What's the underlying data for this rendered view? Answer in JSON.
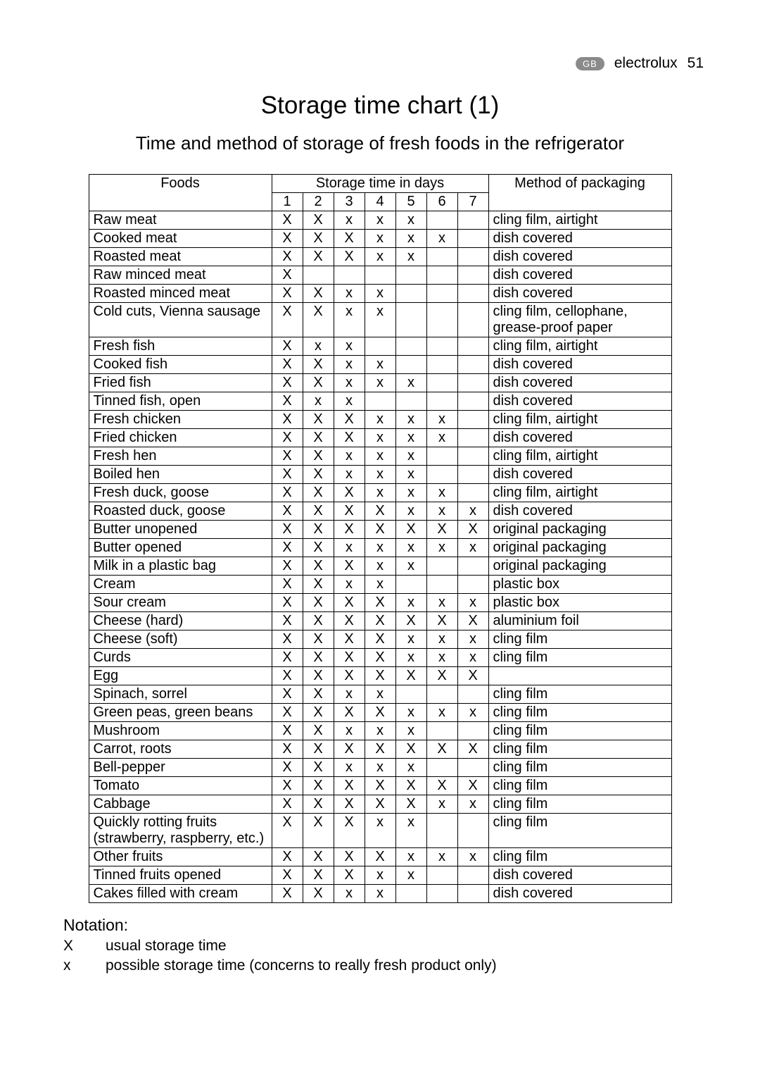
{
  "header": {
    "region_label": "GB",
    "brand": "electrolux",
    "page_number": "51"
  },
  "title": "Storage time chart (1)",
  "subtitle": "Time and method of storage of fresh foods in the refrigerator",
  "columns": {
    "foods_header": "Foods",
    "storage_header": "Storage time in days",
    "method_header": "Method of packaging",
    "day_labels": [
      "1",
      "2",
      "3",
      "4",
      "5",
      "6",
      "7"
    ]
  },
  "rows": [
    {
      "food": "Raw meat",
      "days": [
        "X",
        "X",
        "x",
        "x",
        "x",
        "",
        ""
      ],
      "method": "cling film, airtight"
    },
    {
      "food": "Cooked meat",
      "days": [
        "X",
        "X",
        "X",
        "x",
        "x",
        "x",
        ""
      ],
      "method": "dish covered"
    },
    {
      "food": "Roasted meat",
      "days": [
        "X",
        "X",
        "X",
        "x",
        "x",
        "",
        ""
      ],
      "method": "dish covered"
    },
    {
      "food": "Raw minced meat",
      "days": [
        "X",
        "",
        "",
        "",
        "",
        "",
        ""
      ],
      "method": "dish covered"
    },
    {
      "food": "Roasted minced meat",
      "days": [
        "X",
        "X",
        "x",
        "x",
        "",
        "",
        ""
      ],
      "method": "dish covered"
    },
    {
      "food": "Cold cuts, Vienna sausage",
      "days": [
        "X",
        "X",
        "x",
        "x",
        "",
        "",
        ""
      ],
      "method": "cling film, cellophane, grease-proof paper"
    },
    {
      "food": "Fresh fish",
      "days": [
        "X",
        "x",
        "x",
        "",
        "",
        "",
        ""
      ],
      "method": "cling film, airtight"
    },
    {
      "food": "Cooked fish",
      "days": [
        "X",
        "X",
        "x",
        "x",
        "",
        "",
        ""
      ],
      "method": "dish covered"
    },
    {
      "food": "Fried fish",
      "days": [
        "X",
        "X",
        "x",
        "x",
        "x",
        "",
        ""
      ],
      "method": "dish covered"
    },
    {
      "food": "Tinned fish, open",
      "days": [
        "X",
        "x",
        "x",
        "",
        "",
        "",
        ""
      ],
      "method": "dish covered"
    },
    {
      "food": "Fresh chicken",
      "days": [
        "X",
        "X",
        "X",
        "x",
        "x",
        "x",
        ""
      ],
      "method": "cling film, airtight"
    },
    {
      "food": "Fried chicken",
      "days": [
        "X",
        "X",
        "X",
        "x",
        "x",
        "x",
        ""
      ],
      "method": "dish covered"
    },
    {
      "food": "Fresh hen",
      "days": [
        "X",
        "X",
        "x",
        "x",
        "x",
        "",
        ""
      ],
      "method": "cling film, airtight"
    },
    {
      "food": "Boiled hen",
      "days": [
        "X",
        "X",
        "x",
        "x",
        "x",
        "",
        ""
      ],
      "method": "dish covered"
    },
    {
      "food": "Fresh duck, goose",
      "days": [
        "X",
        "X",
        "X",
        "x",
        "x",
        "x",
        ""
      ],
      "method": "cling film, airtight"
    },
    {
      "food": "Roasted duck, goose",
      "days": [
        "X",
        "X",
        "X",
        "X",
        "x",
        "x",
        "x"
      ],
      "method": "dish covered"
    },
    {
      "food": "Butter unopened",
      "days": [
        "X",
        "X",
        "X",
        "X",
        "X",
        "X",
        "X"
      ],
      "method": "original packaging"
    },
    {
      "food": "Butter opened",
      "days": [
        "X",
        "X",
        "x",
        "x",
        "x",
        "x",
        "x"
      ],
      "method": "original packaging"
    },
    {
      "food": "Milk in a plastic bag",
      "days": [
        "X",
        "X",
        "X",
        "x",
        "x",
        "",
        ""
      ],
      "method": "original packaging"
    },
    {
      "food": "Cream",
      "days": [
        "X",
        "X",
        "x",
        "x",
        "",
        "",
        ""
      ],
      "method": "plastic box"
    },
    {
      "food": "Sour cream",
      "days": [
        "X",
        "X",
        "X",
        "X",
        "x",
        "x",
        "x"
      ],
      "method": "plastic box"
    },
    {
      "food": "Cheese (hard)",
      "days": [
        "X",
        "X",
        "X",
        "X",
        "X",
        "X",
        "X"
      ],
      "method": "aluminium foil"
    },
    {
      "food": "Cheese (soft)",
      "days": [
        "X",
        "X",
        "X",
        "X",
        "x",
        "x",
        "x"
      ],
      "method": "cling film"
    },
    {
      "food": "Curds",
      "days": [
        "X",
        "X",
        "X",
        "X",
        "x",
        "x",
        "x"
      ],
      "method": "cling film"
    },
    {
      "food": "Egg",
      "days": [
        "X",
        "X",
        "X",
        "X",
        "X",
        "X",
        "X"
      ],
      "method": ""
    },
    {
      "food": "Spinach, sorrel",
      "days": [
        "X",
        "X",
        "x",
        "x",
        "",
        "",
        ""
      ],
      "method": "cling film"
    },
    {
      "food": "Green peas, green beans",
      "days": [
        "X",
        "X",
        "X",
        "X",
        "x",
        "x",
        "x"
      ],
      "method": "cling film"
    },
    {
      "food": "Mushroom",
      "days": [
        "X",
        "X",
        "x",
        "x",
        "x",
        "",
        ""
      ],
      "method": "cling film"
    },
    {
      "food": "Carrot, roots",
      "days": [
        "X",
        "X",
        "X",
        "X",
        "X",
        "X",
        "X"
      ],
      "method": "cling film"
    },
    {
      "food": "Bell-pepper",
      "days": [
        "X",
        "X",
        "x",
        "x",
        "x",
        "",
        ""
      ],
      "method": "cling film"
    },
    {
      "food": "Tomato",
      "days": [
        "X",
        "X",
        "X",
        "X",
        "X",
        "X",
        "X"
      ],
      "method": "cling film"
    },
    {
      "food": "Cabbage",
      "days": [
        "X",
        "X",
        "X",
        "X",
        "X",
        "x",
        "x"
      ],
      "method": "cling film"
    },
    {
      "food": "Quickly rotting fruits (strawberry, raspberry, etc.)",
      "days": [
        "X",
        "X",
        "X",
        "x",
        "x",
        "",
        ""
      ],
      "method": "cling film"
    },
    {
      "food": "Other fruits",
      "days": [
        "X",
        "X",
        "X",
        "X",
        "x",
        "x",
        "x"
      ],
      "method": "cling film"
    },
    {
      "food": "Tinned fruits opened",
      "days": [
        "X",
        "X",
        "X",
        "x",
        "x",
        "",
        ""
      ],
      "method": "dish covered"
    },
    {
      "food": "Cakes filled with cream",
      "days": [
        "X",
        "X",
        "x",
        "x",
        "",
        "",
        ""
      ],
      "method": "dish covered"
    }
  ],
  "notation": {
    "heading": "Notation:",
    "legend": [
      {
        "symbol": "X",
        "text": "usual storage time"
      },
      {
        "symbol": "x",
        "text": "possible storage time (concerns to really fresh product only)"
      }
    ]
  },
  "style": {
    "background_color": "#ffffff",
    "text_color": "#000000",
    "border_color": "#000000",
    "title_fontsize": 35,
    "subtitle_fontsize": 26,
    "body_fontsize": 20,
    "font_family": "Arial"
  }
}
